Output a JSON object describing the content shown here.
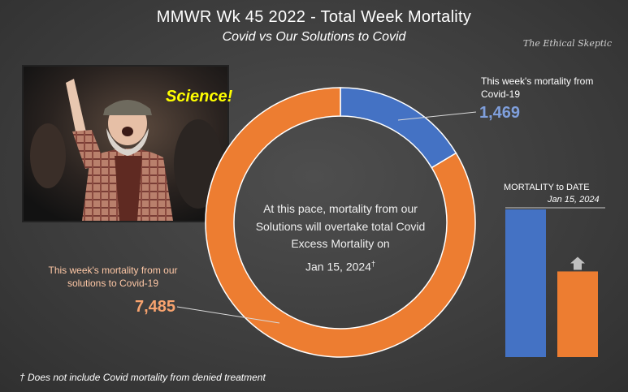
{
  "title": "MMWR  Wk 45 2022 - Total  Week Mortality",
  "subtitle": "Covid vs Our Solutions to Covid",
  "brand": "The Ethical Skeptic",
  "image_caption": "Science!",
  "center_text": "At this pace, mortality from our Solutions will overtake total Covid Excess Mortality on",
  "center_date": "Jan 15, 2024",
  "center_date_mark": "†",
  "footnote": "† Does not include Covid mortality from denied treatment",
  "colors": {
    "covid": "#4472c4",
    "solutions": "#ed7d31",
    "covid_text": "#7f9fdc",
    "solutions_text": "#f8a36e"
  },
  "chart_data": [
    {
      "type": "pie",
      "style": "donut",
      "slices": [
        {
          "label": "This week's mortality from Covid-19",
          "value": 1469,
          "display": "1,469"
        },
        {
          "label": "This week's mortality from our solutions to Covid-19",
          "value": 7485,
          "display": "7,485"
        }
      ]
    },
    {
      "type": "bar",
      "title": "MORTALITY to DATE",
      "subtitle": "Jan 15, 2024",
      "series": [
        {
          "values": [
            1.0
          ]
        },
        {
          "values": [
            0.58
          ]
        }
      ],
      "note": "projected to rise to equal the first bar (up arrow)"
    }
  ]
}
